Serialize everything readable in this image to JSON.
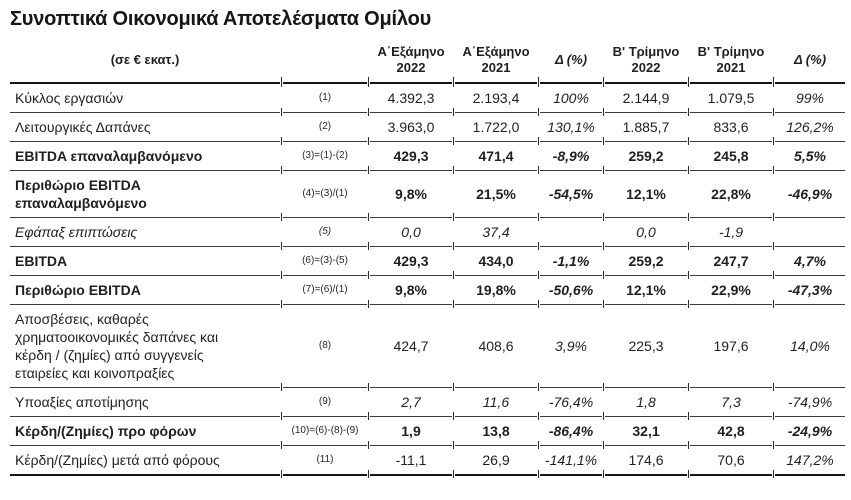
{
  "title": "Συνοπτικά Οικονομικά Αποτελέσματα Ομίλου",
  "colors": {
    "text": "#1f1f1f",
    "row_border": "#3c3c3c",
    "strong_border": "#161616",
    "background": "#ffffff"
  },
  "table": {
    "unit_header": "(σε € εκατ.)",
    "column_headers": [
      {
        "line1": "Α΄Εξάμηνο",
        "line2": "2022",
        "italic": false
      },
      {
        "line1": "Α΄Εξάμηνο",
        "line2": "2021",
        "italic": false
      },
      {
        "line1": "Δ (%)",
        "line2": "",
        "italic": true
      },
      {
        "line1": "Β' Τρίμηνο",
        "line2": "2022",
        "italic": false
      },
      {
        "line1": "Β' Τρίμηνο",
        "line2": "2021",
        "italic": false
      },
      {
        "line1": "Δ (%)",
        "line2": "",
        "italic": true
      }
    ],
    "rows": [
      {
        "label": "Κύκλος εργασιών",
        "ref": "(1)",
        "style": "normal",
        "values": [
          "4.392,3",
          "2.193,4",
          "100%",
          "2.144,9",
          "1.079,5",
          "99%"
        ]
      },
      {
        "label": "Λειτουργικές Δαπάνες",
        "ref": "(2)",
        "style": "normal",
        "values": [
          "3.963,0",
          "1.722,0",
          "130,1%",
          "1.885,7",
          "833,6",
          "126,2%"
        ]
      },
      {
        "label": "EBITDA επαναλαμβανόμενο",
        "ref": "(3)=(1)-(2)",
        "style": "bold",
        "values": [
          "429,3",
          "471,4",
          "-8,9%",
          "259,2",
          "245,8",
          "5,5%"
        ]
      },
      {
        "label": "Περιθώριο EBITDA επαναλαμβανόμενο",
        "ref": "(4)=(3)/(1)",
        "style": "bold",
        "values": [
          "9,8%",
          "21,5%",
          "-54,5%",
          "12,1%",
          "22,8%",
          "-46,9%"
        ]
      },
      {
        "label": "Εφάπαξ επιπτώσεις",
        "ref": "(5)",
        "style": "italic",
        "values": [
          "0,0",
          "37,4",
          "",
          "0,0",
          "-1,9",
          ""
        ]
      },
      {
        "label": "EBITDA",
        "ref": "(6)=(3)-(5)",
        "style": "bold",
        "values": [
          "429,3",
          "434,0",
          "-1,1%",
          "259,2",
          "247,7",
          "4,7%"
        ]
      },
      {
        "label": "Περιθώριο EBITDA",
        "ref": "(7)=(6)/(1)",
        "style": "bold",
        "values": [
          "9,8%",
          "19,8%",
          "-50,6%",
          "12,1%",
          "22,9%",
          "-47,3%"
        ]
      },
      {
        "label": "Αποσβέσεις, καθαρές χρηματοοικονομικές δαπάνες και κέρδη / (ζημίες)  από συγγενείς εταιρείες και κοινοπραξίες",
        "ref": "(8)",
        "style": "normal",
        "values": [
          "424,7",
          "408,6",
          "3,9%",
          "225,3",
          "197,6",
          "14,0%"
        ]
      },
      {
        "label": "Υποαξίες αποτίμησης",
        "ref": "(9)",
        "style": "normal",
        "values_italic": true,
        "values": [
          "2,7",
          "11,6",
          "-76,4%",
          "1,8",
          "7,3",
          "-74,9%"
        ]
      },
      {
        "label": "Κέρδη/(Ζημίες) προ φόρων",
        "ref": "(10)=(6)-(8)-(9)",
        "style": "bold",
        "values": [
          "1,9",
          "13,8",
          "-86,4%",
          "32,1",
          "42,8",
          "-24,9%"
        ]
      },
      {
        "label": "Κέρδη/(Ζημίες) μετά από φόρους",
        "ref": "(11)",
        "style": "normal",
        "values": [
          "-11,1",
          "26,9",
          "-141,1%",
          "174,6",
          "70,6",
          "147,2%"
        ]
      }
    ]
  }
}
